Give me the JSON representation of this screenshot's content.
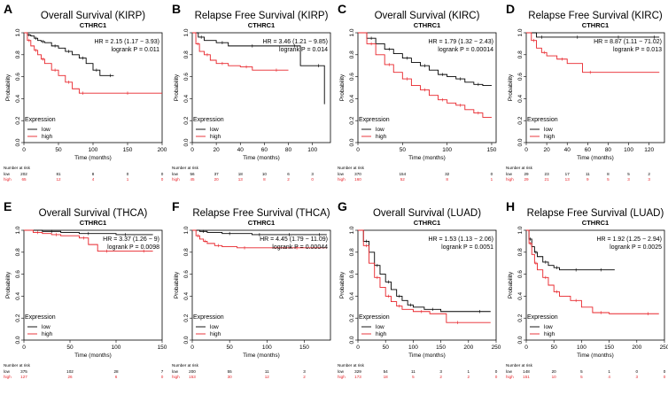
{
  "chart_data": [
    {
      "id": "A",
      "letter": "A",
      "type": "line",
      "title": "Overall Survival (KIRP)",
      "gene": "CTHRC1",
      "hr": "HR = 2.15 (1.17 − 3.93)",
      "logrank": "logrank P = 0.011",
      "xlabel": "Time (months)",
      "ylabel": "Probability",
      "xlim": [
        0,
        200
      ],
      "ylim": [
        0,
        1
      ],
      "xticks": [
        0,
        50,
        100,
        150,
        200
      ],
      "yticks": [
        "0.0",
        "0.2",
        "0.4",
        "0.6",
        "0.8",
        "1.0"
      ],
      "legend_title": "Expression",
      "legend_low": "low",
      "legend_high": "high",
      "risk_title": "Number at risk",
      "risk_low_label": "low",
      "risk_high_label": "high",
      "risk_low": [
        "202",
        "81",
        "8",
        "0",
        "0"
      ],
      "risk_high": [
        "65",
        "12",
        "4",
        "1",
        "0"
      ],
      "series": [
        {
          "name": "low",
          "color": "#000000",
          "x": [
            0,
            5,
            10,
            15,
            20,
            25,
            30,
            40,
            50,
            60,
            70,
            80,
            90,
            100,
            110,
            120,
            130
          ],
          "y": [
            1.0,
            0.98,
            0.97,
            0.95,
            0.93,
            0.92,
            0.91,
            0.88,
            0.86,
            0.83,
            0.8,
            0.77,
            0.72,
            0.66,
            0.61,
            0.61,
            0.61
          ]
        },
        {
          "name": "high",
          "color": "#e8242a",
          "x": [
            0,
            5,
            10,
            15,
            20,
            25,
            30,
            40,
            50,
            60,
            70,
            80,
            90,
            100,
            200
          ],
          "y": [
            1.0,
            0.93,
            0.88,
            0.84,
            0.8,
            0.76,
            0.72,
            0.66,
            0.61,
            0.55,
            0.49,
            0.45,
            0.45,
            0.45,
            0.45
          ]
        }
      ]
    },
    {
      "id": "B",
      "letter": "B",
      "type": "line",
      "title": "Relapse Free Survival (KIRP)",
      "gene": "CTHRC1",
      "hr": "HR = 3.46 (1.21 − 9.85)",
      "logrank": "logrank P = 0.014",
      "xlabel": "Time (months)",
      "ylabel": "Probability",
      "xlim": [
        0,
        115
      ],
      "ylim": [
        0,
        1
      ],
      "xticks": [
        0,
        20,
        40,
        60,
        80,
        100
      ],
      "yticks": [
        "0.0",
        "0.2",
        "0.4",
        "0.6",
        "0.8",
        "1.0"
      ],
      "legend_title": "Expression",
      "legend_low": "low",
      "legend_high": "high",
      "risk_title": "Number at risk",
      "risk_low_label": "low",
      "risk_high_label": "high",
      "risk_low": [
        "56",
        "37",
        "18",
        "10",
        "6",
        "3"
      ],
      "risk_high": [
        "45",
        "20",
        "13",
        "8",
        "2",
        "0"
      ],
      "series": [
        {
          "name": "low",
          "color": "#000000",
          "x": [
            0,
            5,
            10,
            20,
            30,
            40,
            60,
            80,
            90,
            100,
            110
          ],
          "y": [
            1.0,
            0.96,
            0.93,
            0.91,
            0.88,
            0.88,
            0.88,
            0.88,
            0.7,
            0.7,
            0.35
          ]
        },
        {
          "name": "high",
          "color": "#e8242a",
          "x": [
            0,
            3,
            6,
            10,
            15,
            20,
            30,
            40,
            50,
            60,
            80
          ],
          "y": [
            1.0,
            0.9,
            0.83,
            0.8,
            0.75,
            0.72,
            0.7,
            0.69,
            0.66,
            0.66,
            0.66
          ]
        }
      ]
    },
    {
      "id": "C",
      "letter": "C",
      "type": "line",
      "title": "Overall Survival (KIRC)",
      "gene": "CTHRC1",
      "hr": "HR = 1.79 (1.32 − 2.43)",
      "logrank": "logrank P = 0.00014",
      "xlabel": "Time (months)",
      "ylabel": "Probability",
      "xlim": [
        0,
        155
      ],
      "ylim": [
        0,
        1
      ],
      "xticks": [
        0,
        50,
        100,
        150
      ],
      "yticks": [
        "0.0",
        "0.2",
        "0.4",
        "0.6",
        "0.8",
        "1.0"
      ],
      "legend_title": "Expression",
      "legend_low": "low",
      "legend_high": "high",
      "risk_title": "Number at risk",
      "risk_low_label": "low",
      "risk_high_label": "high",
      "risk_low": [
        "370",
        "154",
        "32",
        "0"
      ],
      "risk_high": [
        "160",
        "52",
        "8",
        "1"
      ],
      "series": [
        {
          "name": "low",
          "color": "#000000",
          "x": [
            0,
            10,
            20,
            30,
            40,
            50,
            60,
            70,
            80,
            90,
            100,
            110,
            120,
            130,
            140,
            150
          ],
          "y": [
            1.0,
            0.95,
            0.9,
            0.85,
            0.81,
            0.77,
            0.73,
            0.7,
            0.66,
            0.62,
            0.6,
            0.58,
            0.55,
            0.53,
            0.52,
            0.52
          ]
        },
        {
          "name": "high",
          "color": "#e8242a",
          "x": [
            0,
            10,
            20,
            30,
            40,
            50,
            60,
            70,
            80,
            90,
            100,
            110,
            120,
            130,
            140,
            150
          ],
          "y": [
            1.0,
            0.9,
            0.8,
            0.71,
            0.64,
            0.58,
            0.52,
            0.48,
            0.43,
            0.39,
            0.36,
            0.34,
            0.3,
            0.27,
            0.23,
            0.23
          ]
        }
      ]
    },
    {
      "id": "D",
      "letter": "D",
      "type": "line",
      "title": "Relapse Free Survival (KIRC)",
      "gene": "CTHRC1",
      "hr": "HR = 8.87 (1.11 − 71.02)",
      "logrank": "logrank P = 0.013",
      "xlabel": "Time (months)",
      "ylabel": "Probability",
      "xlim": [
        0,
        135
      ],
      "ylim": [
        0,
        1
      ],
      "xticks": [
        0,
        20,
        40,
        60,
        80,
        100,
        120
      ],
      "yticks": [
        "0.0",
        "0.2",
        "0.4",
        "0.6",
        "0.8",
        "1.0"
      ],
      "legend_title": "Expression",
      "legend_low": "low",
      "legend_high": "high",
      "risk_title": "Number at risk",
      "risk_low_label": "low",
      "risk_high_label": "high",
      "risk_low": [
        "29",
        "23",
        "17",
        "11",
        "8",
        "5",
        "2"
      ],
      "risk_high": [
        "29",
        "21",
        "13",
        "9",
        "5",
        "3",
        "3"
      ],
      "series": [
        {
          "name": "low",
          "color": "#000000",
          "x": [
            0,
            10,
            20,
            40,
            60,
            80,
            100,
            120,
            130
          ],
          "y": [
            1.0,
            0.96,
            0.96,
            0.96,
            0.96,
            0.96,
            0.96,
            0.96,
            0.96
          ]
        },
        {
          "name": "high",
          "color": "#e8242a",
          "x": [
            0,
            5,
            10,
            15,
            20,
            30,
            40,
            55,
            70,
            130
          ],
          "y": [
            1.0,
            0.93,
            0.86,
            0.82,
            0.79,
            0.76,
            0.72,
            0.64,
            0.64,
            0.64
          ]
        }
      ]
    },
    {
      "id": "E",
      "letter": "E",
      "type": "line",
      "title": "Overall Survival (THCA)",
      "gene": "CTHRC1",
      "hr": "HR = 3.37 (1.26 − 9)",
      "logrank": "logrank P = 0.0098",
      "xlabel": "Time (months)",
      "ylabel": "Probability",
      "xlim": [
        0,
        150
      ],
      "ylim": [
        0,
        1
      ],
      "xticks": [
        0,
        50,
        100,
        150
      ],
      "yticks": [
        "0.0",
        "0.2",
        "0.4",
        "0.6",
        "0.8",
        "1.0"
      ],
      "legend_title": "Expression",
      "legend_low": "low",
      "legend_high": "high",
      "risk_title": "Number at risk",
      "risk_low_label": "low",
      "risk_high_label": "high",
      "risk_low": [
        "375",
        "102",
        "28",
        "7"
      ],
      "risk_high": [
        "127",
        "26",
        "6",
        "0"
      ],
      "series": [
        {
          "name": "low",
          "color": "#000000",
          "x": [
            0,
            20,
            40,
            60,
            80,
            100,
            120,
            140
          ],
          "y": [
            1.0,
            0.99,
            0.98,
            0.97,
            0.97,
            0.96,
            0.96,
            0.96
          ]
        },
        {
          "name": "high",
          "color": "#e8242a",
          "x": [
            0,
            10,
            20,
            30,
            40,
            60,
            70,
            80,
            100,
            120,
            140
          ],
          "y": [
            1.0,
            0.98,
            0.97,
            0.96,
            0.95,
            0.93,
            0.87,
            0.81,
            0.81,
            0.81,
            0.81
          ]
        }
      ]
    },
    {
      "id": "F",
      "letter": "F",
      "type": "line",
      "title": "Relapse Free Survival (THCA)",
      "gene": "CTHRC1",
      "hr": "HR = 4.45 (1.79 − 11.09)",
      "logrank": "logrank P = 0.00044",
      "xlabel": "Time (months)",
      "ylabel": "Probability",
      "xlim": [
        0,
        185
      ],
      "ylim": [
        0,
        1
      ],
      "xticks": [
        0,
        50,
        100,
        150
      ],
      "yticks": [
        "0.0",
        "0.2",
        "0.4",
        "0.6",
        "0.8",
        "1.0"
      ],
      "legend_title": "Expression",
      "legend_low": "low",
      "legend_high": "high",
      "risk_title": "Number at risk",
      "risk_low_label": "low",
      "risk_high_label": "high",
      "risk_low": [
        "200",
        "55",
        "11",
        "3"
      ],
      "risk_high": [
        "153",
        "30",
        "12",
        "2"
      ],
      "series": [
        {
          "name": "low",
          "color": "#000000",
          "x": [
            0,
            10,
            20,
            40,
            60,
            80,
            100,
            120,
            140,
            160,
            180
          ],
          "y": [
            1.0,
            0.99,
            0.98,
            0.97,
            0.97,
            0.96,
            0.96,
            0.96,
            0.96,
            0.96,
            0.96
          ]
        },
        {
          "name": "high",
          "color": "#e8242a",
          "x": [
            0,
            5,
            10,
            15,
            20,
            30,
            40,
            60,
            80,
            100,
            180
          ],
          "y": [
            1.0,
            0.95,
            0.92,
            0.9,
            0.88,
            0.86,
            0.85,
            0.84,
            0.84,
            0.84,
            0.84
          ]
        }
      ]
    },
    {
      "id": "G",
      "letter": "G",
      "type": "line",
      "title": "Overall Survival (LUAD)",
      "gene": "CTHRC1",
      "hr": "HR = 1.53 (1.13 − 2.06)",
      "logrank": "logrank P = 0.0051",
      "xlabel": "Time (months)",
      "ylabel": "Probability",
      "xlim": [
        0,
        250
      ],
      "ylim": [
        0,
        1
      ],
      "xticks": [
        0,
        50,
        100,
        150,
        200,
        250
      ],
      "yticks": [
        "0.0",
        "0.2",
        "0.4",
        "0.6",
        "0.8",
        "1.0"
      ],
      "legend_title": "Expression",
      "legend_low": "low",
      "legend_high": "high",
      "risk_title": "Number at risk",
      "risk_low_label": "low",
      "risk_high_label": "high",
      "risk_low": [
        "329",
        "54",
        "11",
        "3",
        "1",
        "0"
      ],
      "risk_high": [
        "173",
        "18",
        "5",
        "2",
        "2",
        "0"
      ],
      "series": [
        {
          "name": "low",
          "color": "#000000",
          "x": [
            0,
            10,
            20,
            30,
            40,
            50,
            60,
            70,
            80,
            90,
            100,
            120,
            150,
            200,
            240
          ],
          "y": [
            1.0,
            0.9,
            0.8,
            0.68,
            0.6,
            0.53,
            0.46,
            0.4,
            0.36,
            0.32,
            0.3,
            0.28,
            0.26,
            0.26,
            0.26
          ]
        },
        {
          "name": "high",
          "color": "#e8242a",
          "x": [
            0,
            10,
            20,
            30,
            40,
            50,
            60,
            70,
            80,
            100,
            130,
            160,
            200,
            240
          ],
          "y": [
            1.0,
            0.86,
            0.7,
            0.57,
            0.48,
            0.4,
            0.35,
            0.31,
            0.28,
            0.26,
            0.24,
            0.16,
            0.16,
            0.16
          ]
        }
      ]
    },
    {
      "id": "H",
      "letter": "H",
      "type": "line",
      "title": "Relapse Free Survival (LUAD)",
      "gene": "CTHRC1",
      "hr": "HR = 1.92 (1.25 − 2.94)",
      "logrank": "logrank P = 0.0025",
      "xlabel": "Time (months)",
      "ylabel": "Probability",
      "xlim": [
        0,
        250
      ],
      "ylim": [
        0,
        1
      ],
      "xticks": [
        0,
        50,
        100,
        150,
        200,
        250
      ],
      "yticks": [
        "0.0",
        "0.2",
        "0.4",
        "0.6",
        "0.8",
        "1.0"
      ],
      "legend_title": "Expression",
      "legend_low": "low",
      "legend_high": "high",
      "risk_title": "Number at risk",
      "risk_low_label": "low",
      "risk_high_label": "high",
      "risk_low": [
        "148",
        "20",
        "5",
        "1",
        "0",
        "0"
      ],
      "risk_high": [
        "151",
        "10",
        "5",
        "4",
        "3",
        "0"
      ],
      "series": [
        {
          "name": "low",
          "color": "#000000",
          "x": [
            0,
            5,
            10,
            15,
            20,
            30,
            40,
            50,
            60,
            80,
            100,
            120,
            150,
            160
          ],
          "y": [
            1.0,
            0.92,
            0.85,
            0.8,
            0.76,
            0.71,
            0.68,
            0.66,
            0.64,
            0.64,
            0.64,
            0.64,
            0.64,
            0.64
          ]
        },
        {
          "name": "high",
          "color": "#e8242a",
          "x": [
            0,
            5,
            10,
            15,
            20,
            30,
            40,
            50,
            60,
            80,
            100,
            120,
            150,
            200,
            240
          ],
          "y": [
            1.0,
            0.88,
            0.78,
            0.7,
            0.64,
            0.57,
            0.5,
            0.44,
            0.4,
            0.36,
            0.3,
            0.25,
            0.24,
            0.24,
            0.24
          ]
        }
      ]
    }
  ]
}
